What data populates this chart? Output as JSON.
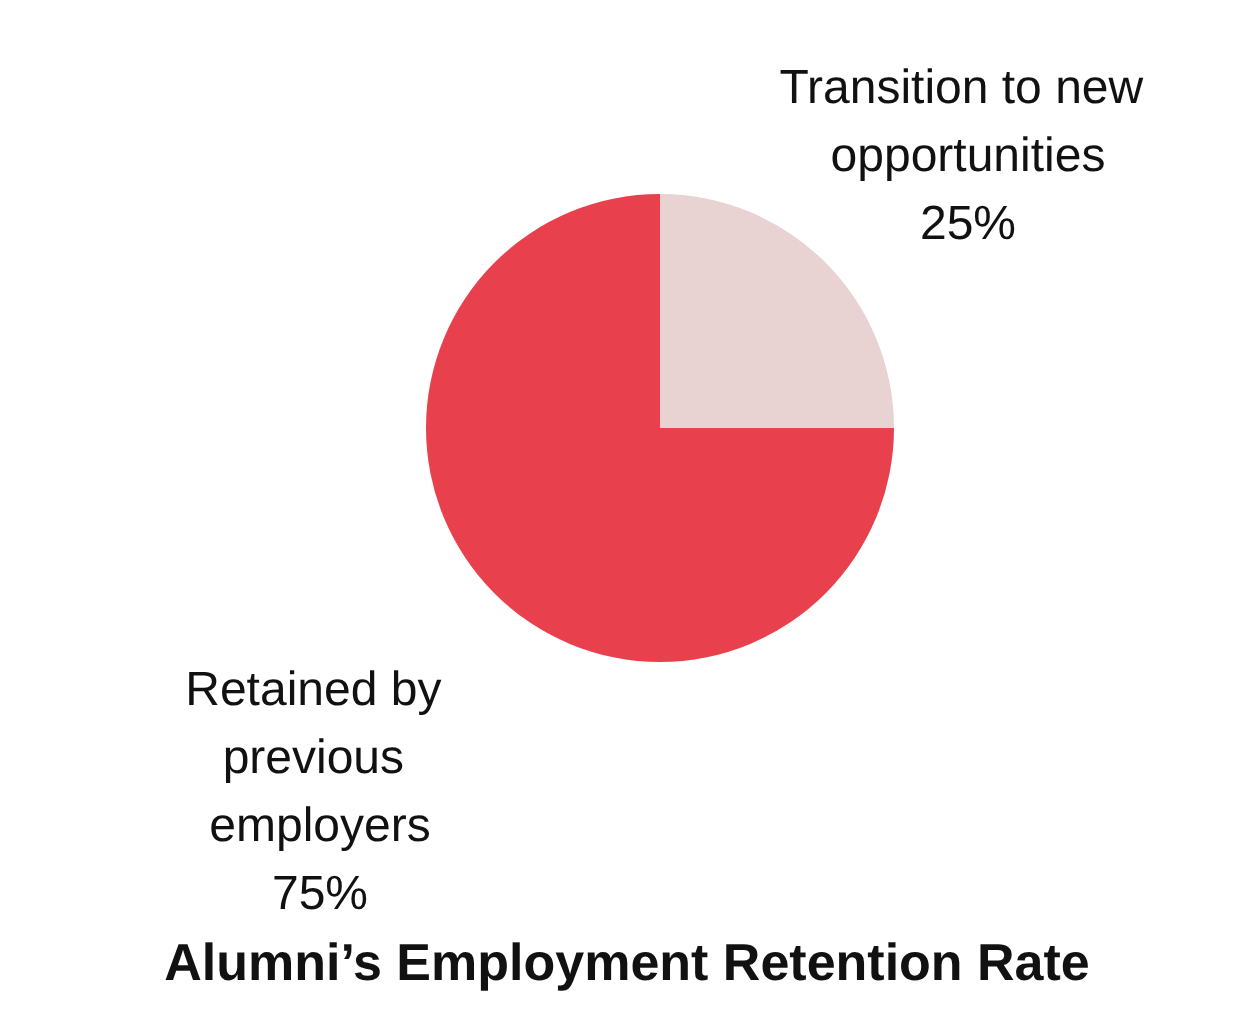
{
  "chart_data": {
    "type": "pie",
    "title": "Alumni’s Employment Retention Rate",
    "categories": [
      "Transition to new opportunities",
      "Retained by previous employers"
    ],
    "values": [
      25,
      75
    ],
    "value_labels": [
      "25%",
      "75%"
    ],
    "colors": [
      "#e8d2d2",
      "#e8414d"
    ]
  }
}
